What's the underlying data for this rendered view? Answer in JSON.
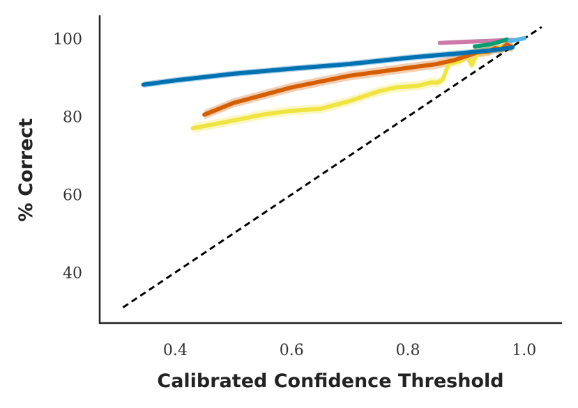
{
  "chart_data": {
    "type": "line",
    "title": "",
    "xlabel": "Calibrated Confidence Threshold",
    "ylabel": "% Correct",
    "xlim": [
      0.27,
      1.065
    ],
    "ylim": [
      27,
      106
    ],
    "xticks": [
      "0.4",
      "0.6",
      "0.8",
      "1.0"
    ],
    "xtick_values": [
      0.4,
      0.6,
      0.8,
      1.0
    ],
    "yticks": [
      "40",
      "60",
      "80",
      "100"
    ],
    "ytick_values": [
      40,
      60,
      80,
      100
    ],
    "grid": false,
    "reference_line": {
      "style": "dashed",
      "color": "#000000",
      "x": [
        0.31,
        1.03
      ],
      "y": [
        31,
        103
      ]
    },
    "series": [
      {
        "color": "#f0e442",
        "band": 1.2,
        "x": [
          0.43,
          0.5,
          0.55,
          0.6,
          0.65,
          0.7,
          0.75,
          0.78,
          0.8,
          0.82,
          0.84,
          0.85,
          0.86,
          0.87,
          0.88,
          0.89,
          0.9,
          0.91,
          0.92,
          0.93,
          0.95,
          0.97,
          0.98
        ],
        "y": [
          77,
          79,
          80.5,
          81.5,
          82,
          84,
          86.5,
          87.5,
          87.7,
          88,
          88.8,
          88.7,
          89.5,
          93.5,
          94,
          94.2,
          95.8,
          93.2,
          96.5,
          96.5,
          97.5,
          98,
          98
        ]
      },
      {
        "color": "#d55e00",
        "band": 1.2,
        "x": [
          0.45,
          0.5,
          0.55,
          0.6,
          0.65,
          0.7,
          0.75,
          0.8,
          0.85,
          0.88,
          0.9,
          0.92,
          0.94,
          0.95,
          0.96,
          0.97,
          0.98
        ],
        "y": [
          80.5,
          83.5,
          85.5,
          87.5,
          89,
          90.5,
          91.5,
          92.5,
          93.5,
          94.5,
          95.5,
          96.5,
          96.8,
          97.6,
          97.2,
          98.5,
          97.8
        ]
      },
      {
        "color": "#0072b2",
        "band": 0.8,
        "x": [
          0.345,
          0.4,
          0.5,
          0.6,
          0.7,
          0.8,
          0.9,
          0.95,
          0.98
        ],
        "y": [
          88.2,
          89.3,
          91,
          92.3,
          93.5,
          95.1,
          96.4,
          97.1,
          97.8
        ]
      },
      {
        "color": "#cc79a7",
        "band": 0,
        "x": [
          0.855,
          0.9,
          0.95,
          0.98
        ],
        "y": [
          98.9,
          99.2,
          99.5,
          99.7
        ]
      },
      {
        "color": "#009e73",
        "band": 0,
        "x": [
          0.915,
          0.94,
          0.96,
          0.97
        ],
        "y": [
          98,
          98.5,
          99.3,
          99.8
        ]
      },
      {
        "color": "#56b4e9",
        "band": 0,
        "x": [
          0.975,
          0.99,
          1.0
        ],
        "y": [
          99.4,
          99.8,
          100.1
        ]
      }
    ]
  }
}
